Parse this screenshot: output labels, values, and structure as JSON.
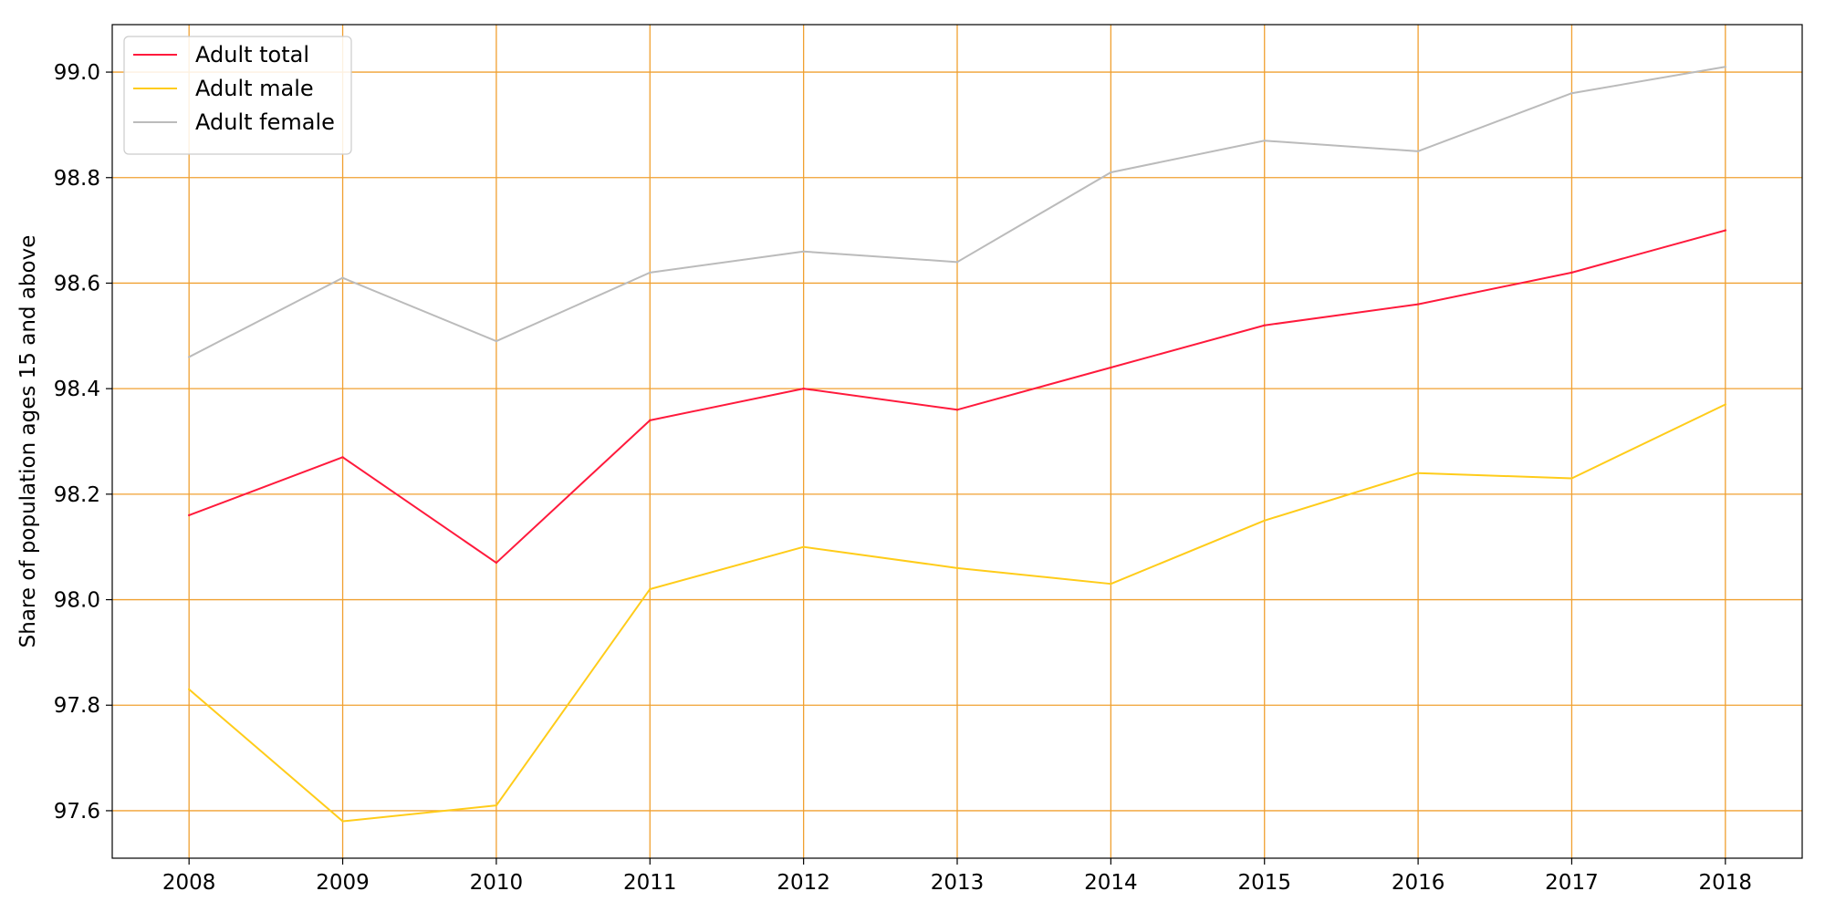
{
  "chart_data": {
    "type": "line",
    "title": "",
    "xlabel": "",
    "ylabel": "Share of population ages 15 and above",
    "x": [
      2008,
      2009,
      2010,
      2011,
      2012,
      2013,
      2014,
      2015,
      2016,
      2017,
      2018
    ],
    "xticks": [
      "2008",
      "2009",
      "2010",
      "2011",
      "2012",
      "2013",
      "2014",
      "2015",
      "2016",
      "2017",
      "2018"
    ],
    "yticks": [
      "97.6",
      "97.8",
      "98.0",
      "98.2",
      "98.4",
      "98.6",
      "98.8",
      "99.0"
    ],
    "xlim": [
      2007.5,
      2018.5
    ],
    "ylim": [
      97.51,
      99.09
    ],
    "grid": true,
    "grid_color": "#f0a030",
    "legend_position": "upper-left",
    "series": [
      {
        "name": "Adult total",
        "color": "#ff1a3c",
        "values": [
          98.16,
          98.27,
          98.07,
          98.34,
          98.4,
          98.36,
          98.44,
          98.52,
          98.56,
          98.62,
          98.7
        ]
      },
      {
        "name": "Adult male",
        "color": "#ffcc1a",
        "values": [
          97.83,
          97.58,
          97.61,
          98.02,
          98.1,
          98.06,
          98.03,
          98.15,
          98.24,
          98.23,
          98.37
        ]
      },
      {
        "name": "Adult female",
        "color": "#bbbbbb",
        "values": [
          98.46,
          98.61,
          98.49,
          98.62,
          98.66,
          98.64,
          98.81,
          98.87,
          98.85,
          98.96,
          99.01
        ]
      }
    ]
  }
}
